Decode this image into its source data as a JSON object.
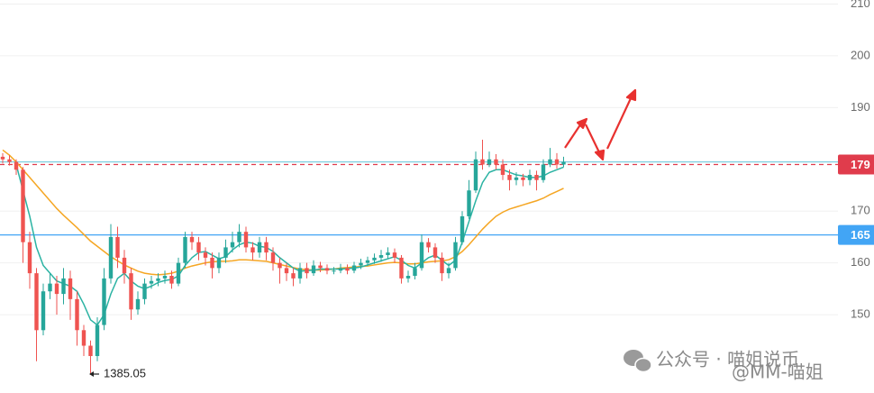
{
  "chart_data": {
    "type": "candlestick",
    "ylim": [
      1392.17,
      2107.83
    ],
    "yticks": [
      {
        "value": 2100,
        "label": "210"
      },
      {
        "value": 2000,
        "label": "200"
      },
      {
        "value": 1900,
        "label": "190"
      },
      {
        "value": 1700,
        "label": "170"
      },
      {
        "value": 1600,
        "label": "160"
      },
      {
        "value": 1500,
        "label": "150"
      }
    ],
    "grid": true,
    "up_color": "#26a69a",
    "down_color": "#ef5350",
    "open": [
      1805,
      1800,
      1795,
      1780,
      1640,
      1580,
      1470,
      1545,
      1560,
      1540,
      1570,
      1530,
      1470,
      1440,
      1420,
      1480,
      1570,
      1650,
      1610,
      1580,
      1510,
      1530,
      1560,
      1565,
      1570,
      1575,
      1560,
      1600,
      1650,
      1640,
      1620,
      1610,
      1590,
      1610,
      1630,
      1640,
      1660,
      1630,
      1620,
      1640,
      1620,
      1600,
      1590,
      1580,
      1570,
      1590,
      1580,
      1595,
      1590,
      1585,
      1585,
      1590,
      1585,
      1595,
      1600,
      1605,
      1610,
      1615,
      1620,
      1610,
      1570,
      1575,
      1590,
      1640,
      1630,
      1610,
      1580,
      1590,
      1640,
      1690,
      1740,
      1800,
      1790,
      1800,
      1790,
      1770,
      1760,
      1765,
      1760,
      1770,
      1760,
      1790,
      1800,
      1790
    ],
    "high": [
      1812,
      1808,
      1800,
      1785,
      1660,
      1590,
      1560,
      1580,
      1575,
      1590,
      1585,
      1545,
      1480,
      1450,
      1495,
      1590,
      1675,
      1670,
      1625,
      1590,
      1545,
      1570,
      1575,
      1580,
      1585,
      1585,
      1610,
      1660,
      1660,
      1650,
      1630,
      1620,
      1620,
      1645,
      1660,
      1675,
      1670,
      1640,
      1650,
      1650,
      1630,
      1610,
      1600,
      1590,
      1600,
      1600,
      1605,
      1602,
      1597,
      1592,
      1598,
      1597,
      1602,
      1608,
      1612,
      1618,
      1625,
      1630,
      1628,
      1615,
      1585,
      1600,
      1655,
      1648,
      1638,
      1620,
      1600,
      1650,
      1700,
      1760,
      1815,
      1838,
      1815,
      1810,
      1800,
      1780,
      1775,
      1772,
      1780,
      1778,
      1800,
      1822,
      1812,
      1805
    ],
    "low": [
      1792,
      1788,
      1770,
      1600,
      1550,
      1410,
      1460,
      1530,
      1500,
      1520,
      1490,
      1440,
      1420,
      1385.05,
      1410,
      1470,
      1560,
      1590,
      1560,
      1490,
      1500,
      1520,
      1550,
      1555,
      1560,
      1550,
      1555,
      1590,
      1625,
      1605,
      1595,
      1570,
      1580,
      1600,
      1620,
      1630,
      1620,
      1605,
      1610,
      1605,
      1585,
      1560,
      1565,
      1555,
      1560,
      1570,
      1575,
      1582,
      1578,
      1578,
      1580,
      1578,
      1580,
      1588,
      1594,
      1598,
      1602,
      1608,
      1600,
      1560,
      1562,
      1568,
      1585,
      1620,
      1600,
      1565,
      1570,
      1585,
      1635,
      1685,
      1735,
      1780,
      1785,
      1780,
      1760,
      1740,
      1750,
      1748,
      1750,
      1740,
      1755,
      1785,
      1782,
      1785
    ],
    "close": [
      1800,
      1795,
      1780,
      1640,
      1580,
      1470,
      1545,
      1560,
      1540,
      1570,
      1530,
      1470,
      1440,
      1420,
      1480,
      1570,
      1650,
      1610,
      1580,
      1510,
      1530,
      1560,
      1565,
      1570,
      1575,
      1560,
      1600,
      1650,
      1640,
      1620,
      1610,
      1590,
      1610,
      1630,
      1640,
      1660,
      1630,
      1620,
      1640,
      1620,
      1600,
      1590,
      1580,
      1570,
      1590,
      1580,
      1595,
      1590,
      1585,
      1585,
      1590,
      1585,
      1595,
      1600,
      1605,
      1610,
      1615,
      1620,
      1610,
      1570,
      1575,
      1590,
      1640,
      1630,
      1610,
      1580,
      1590,
      1640,
      1690,
      1740,
      1800,
      1790,
      1800,
      1790,
      1770,
      1760,
      1765,
      1760,
      1770,
      1760,
      1790,
      1800,
      1790,
      1795
    ],
    "series": [
      {
        "color": "#f5a623",
        "values": [
          1818,
          1808,
          1795,
          1780,
          1765,
          1750,
          1735,
          1720,
          1705,
          1692,
          1680,
          1668,
          1655,
          1642,
          1632,
          1622,
          1612,
          1604,
          1596,
          1590,
          1584,
          1580,
          1578,
          1577,
          1578,
          1580,
          1584,
          1590,
          1594,
          1597,
          1600,
          1602,
          1603,
          1603,
          1604,
          1606,
          1606,
          1605,
          1604,
          1603,
          1600,
          1597,
          1594,
          1591,
          1588,
          1587,
          1586,
          1586,
          1587,
          1588,
          1590,
          1591,
          1592,
          1593,
          1594,
          1596,
          1598,
          1600,
          1601,
          1600,
          1598,
          1598,
          1600,
          1602,
          1603,
          1604,
          1606,
          1612,
          1622,
          1635,
          1650,
          1665,
          1678,
          1690,
          1698,
          1704,
          1708,
          1712,
          1716,
          1720,
          1725,
          1732,
          1738,
          1744
        ]
      },
      {
        "color": "#2bb3a3",
        "values": [
          null,
          null,
          1790,
          1740,
          1690,
          1630,
          1595,
          1580,
          1565,
          1560,
          1555,
          1545,
          1520,
          1490,
          1480,
          1500,
          1540,
          1570,
          1580,
          1565,
          1555,
          1550,
          1555,
          1562,
          1566,
          1568,
          1575,
          1595,
          1610,
          1620,
          1622,
          1615,
          1608,
          1612,
          1625,
          1635,
          1640,
          1638,
          1632,
          1630,
          1622,
          1610,
          1600,
          1590,
          1584,
          1585,
          1586,
          1588,
          1588,
          1588,
          1588,
          1589,
          1590,
          1592,
          1596,
          1600,
          1604,
          1608,
          1612,
          1605,
          1595,
          1590,
          1600,
          1610,
          1615,
          1605,
          1595,
          1605,
          1640,
          1680,
          1720,
          1755,
          1775,
          1780,
          1780,
          1775,
          1770,
          1768,
          1765,
          1765,
          1768,
          1775,
          1780,
          1785
        ]
      }
    ],
    "levels": [
      {
        "value": 1795,
        "color": "#7fcfe0"
      },
      {
        "value": 1790,
        "label": "179",
        "color": "#e03c4c"
      },
      {
        "value": 1654,
        "label": "165",
        "color": "#42a5f5"
      }
    ],
    "watermark": [
      "公众号 · 喵姐说币",
      "@MM-喵姐"
    ]
  }
}
